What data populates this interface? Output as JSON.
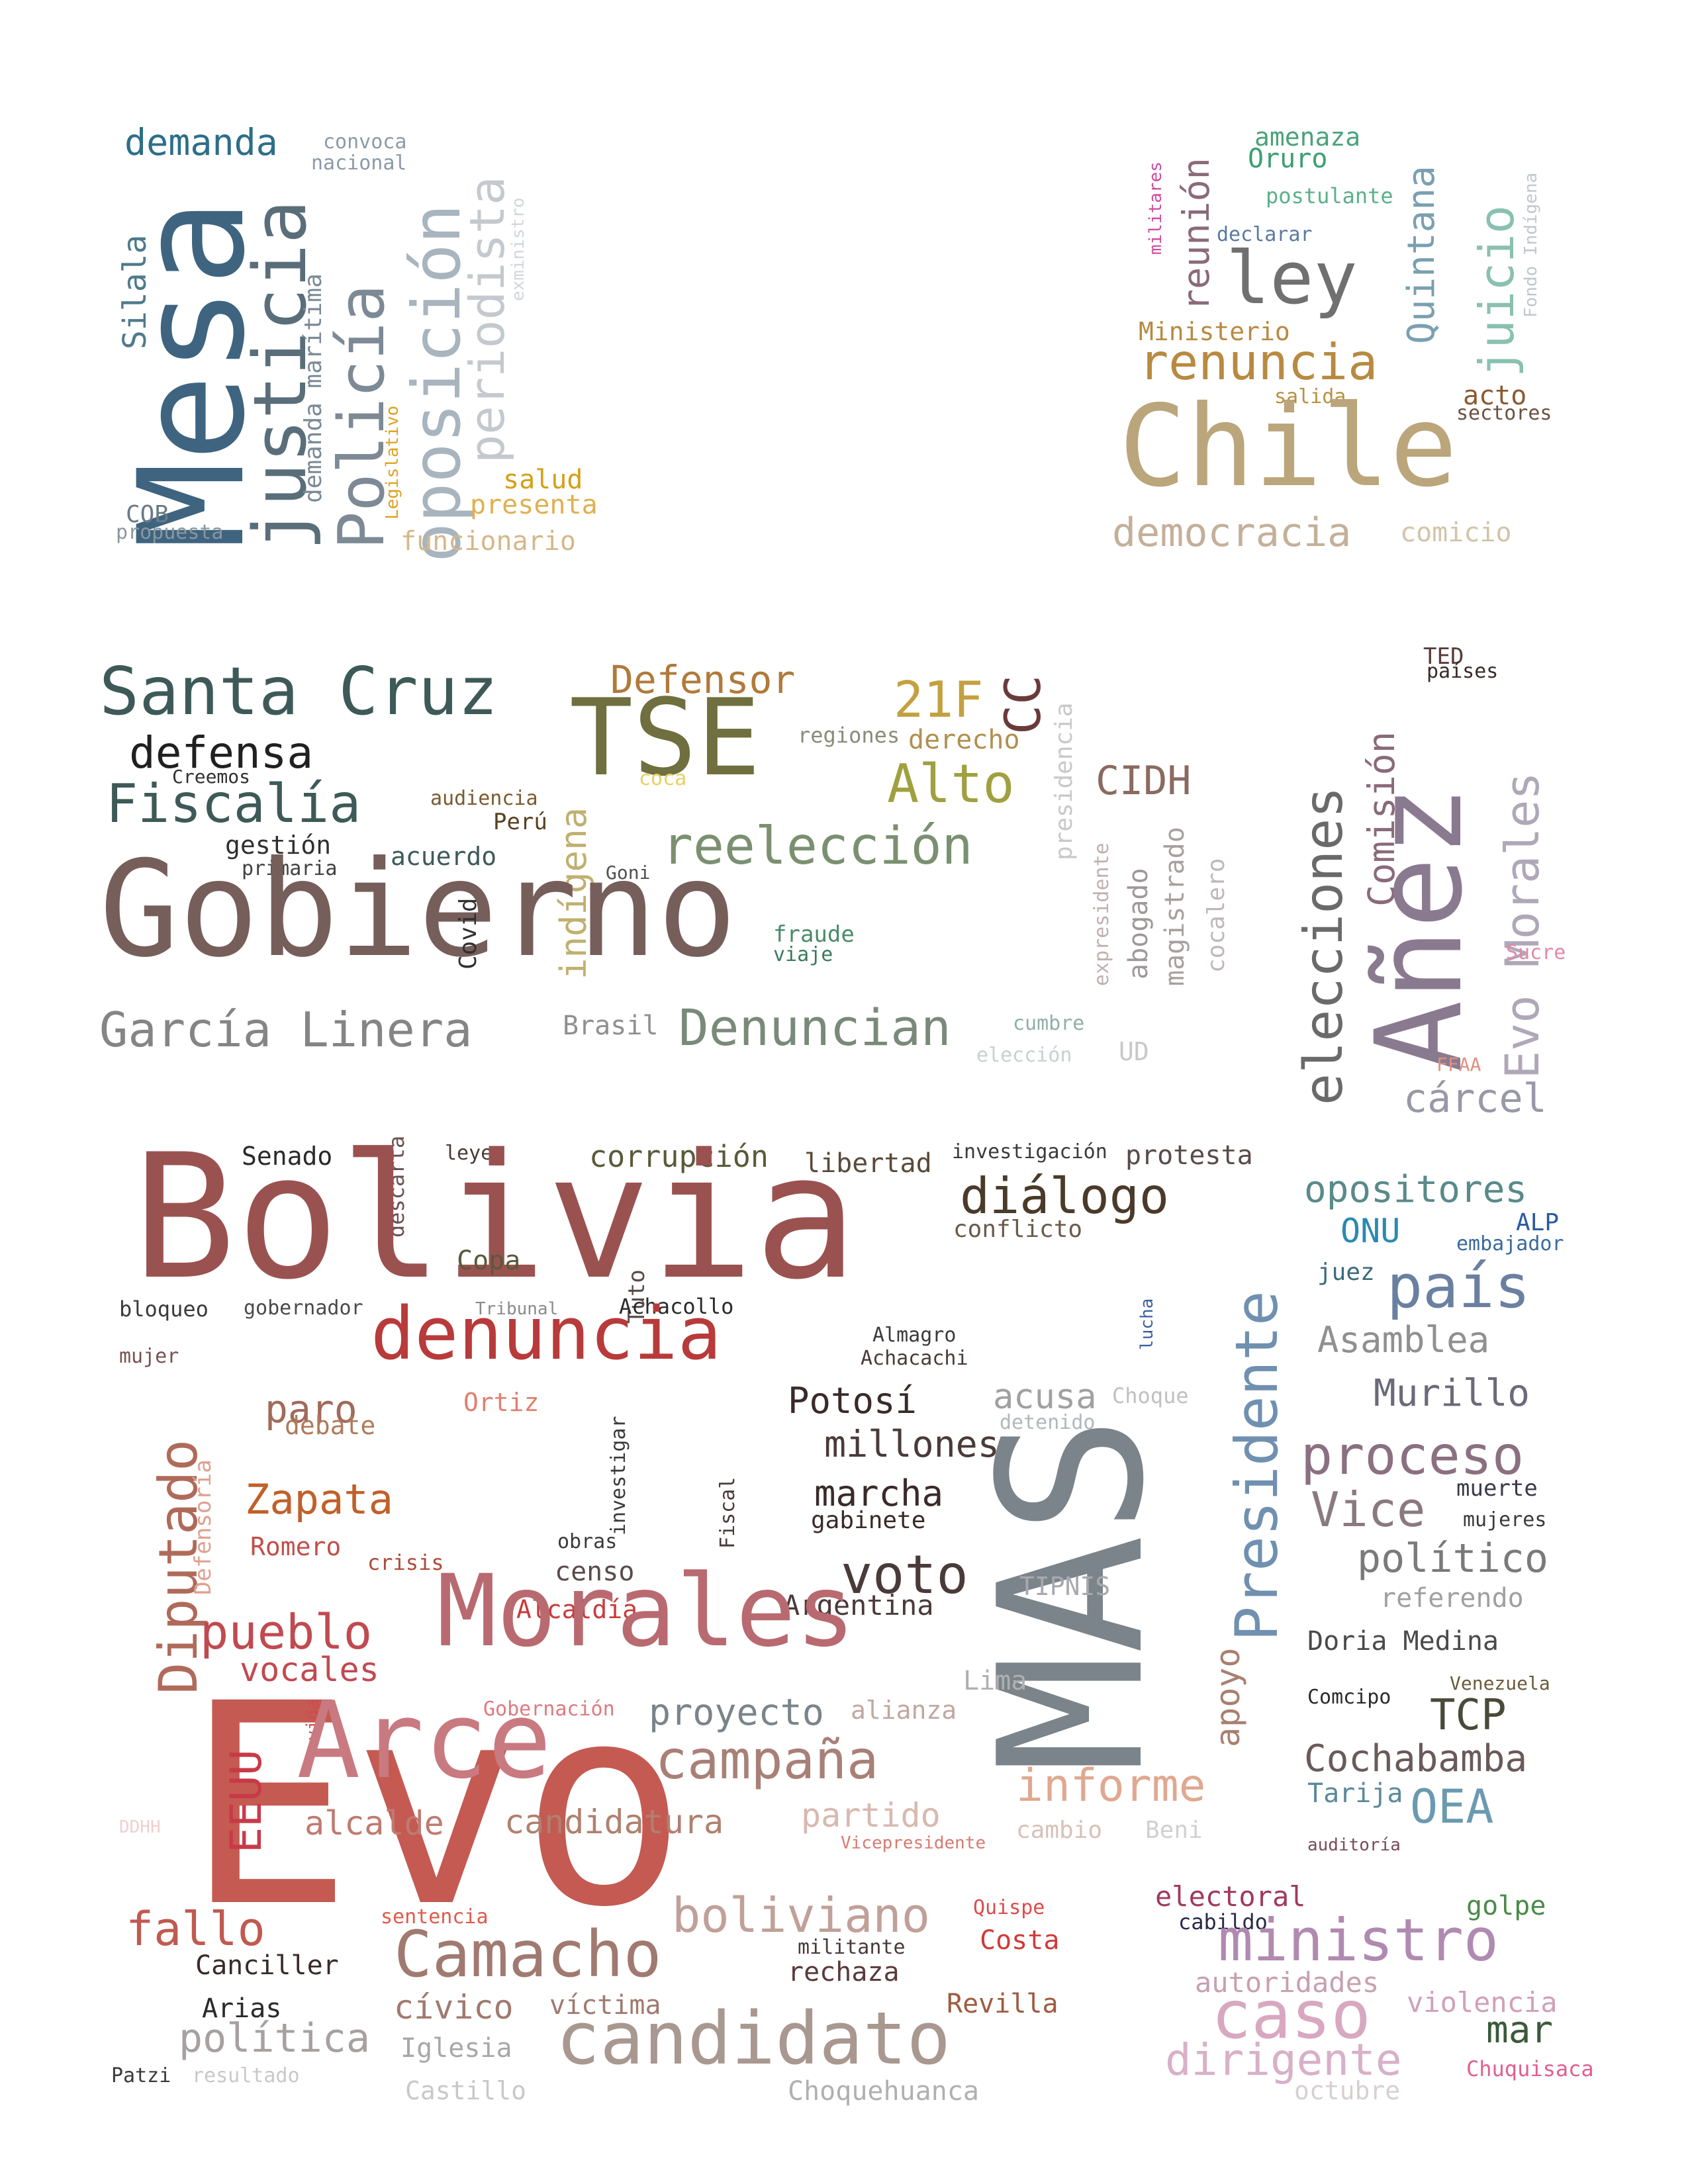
{
  "clusters": [
    {
      "id": "top-left",
      "words": [
        {
          "text": "demanda",
          "color": "#2c6e8a"
        },
        {
          "text": "convoca",
          "color": "#8c9aa8"
        },
        {
          "text": "nacional",
          "color": "#8c9aa8"
        },
        {
          "text": "Mesa",
          "color": "#3e6480"
        },
        {
          "text": "justicia",
          "color": "#5a6e7a"
        },
        {
          "text": "Silala",
          "color": "#4e7a8c"
        },
        {
          "text": "demanda marítima",
          "color": "#7a8a96"
        },
        {
          "text": "Policía",
          "color": "#7d8a95"
        },
        {
          "text": "oposición",
          "color": "#a8b4be"
        },
        {
          "text": "periodista",
          "color": "#c4c9cf"
        },
        {
          "text": "exministro",
          "color": "#d2d6da"
        },
        {
          "text": "Legislativo",
          "color": "#e0a020"
        },
        {
          "text": "salud",
          "color": "#d4a017"
        },
        {
          "text": "presenta",
          "color": "#e0b050"
        },
        {
          "text": "funcionario",
          "color": "#d4b88a"
        },
        {
          "text": "COB",
          "color": "#6a7a86"
        },
        {
          "text": "propuesta",
          "color": "#8a969e"
        }
      ]
    },
    {
      "id": "top-right",
      "words": [
        {
          "text": "amenaza",
          "color": "#4aa37a"
        },
        {
          "text": "Oruro",
          "color": "#3aa070"
        },
        {
          "text": "militares",
          "color": "#d04aa0"
        },
        {
          "text": "reunión",
          "color": "#8a6a7a"
        },
        {
          "text": "postulante",
          "color": "#5ab08a"
        },
        {
          "text": "declarar",
          "color": "#5a7aa0"
        },
        {
          "text": "ley",
          "color": "#707070"
        },
        {
          "text": "Quintana",
          "color": "#7aa0b0"
        },
        {
          "text": "juicio",
          "color": "#8ac0b0"
        },
        {
          "text": "Fondo Indígena",
          "color": "#c0c8cc"
        },
        {
          "text": "Ministerio",
          "color": "#b88a40"
        },
        {
          "text": "renuncia",
          "color": "#b88a40"
        },
        {
          "text": "salida",
          "color": "#b89040"
        },
        {
          "text": "acto",
          "color": "#8a5a30"
        },
        {
          "text": "sectores",
          "color": "#6a5040"
        },
        {
          "text": "Chile",
          "color": "#bba57a"
        },
        {
          "text": "democracia",
          "color": "#c4b09a"
        },
        {
          "text": "comicio",
          "color": "#d2c4a8"
        }
      ]
    },
    {
      "id": "middle-left",
      "words": [
        {
          "text": "Santa Cruz",
          "color": "#3e5a58"
        },
        {
          "text": "Defensor",
          "color": "#b07a3a"
        },
        {
          "text": "21F",
          "color": "#c4a040"
        },
        {
          "text": "CC",
          "color": "#6a3a3a"
        },
        {
          "text": "presidencia",
          "color": "#c8c8c8"
        },
        {
          "text": "TSE",
          "color": "#6f6f3f"
        },
        {
          "text": "regiones",
          "color": "#8a8a7a"
        },
        {
          "text": "derecho",
          "color": "#b09050"
        },
        {
          "text": "defensa",
          "color": "#202020"
        },
        {
          "text": "Creemos",
          "color": "#303030"
        },
        {
          "text": "coca",
          "color": "#e8d060"
        },
        {
          "text": "Alto",
          "color": "#a0a040"
        },
        {
          "text": "CIDH",
          "color": "#8a6a60"
        },
        {
          "text": "Fiscalía",
          "color": "#3e5a58"
        },
        {
          "text": "audiencia",
          "color": "#7a5a30"
        },
        {
          "text": "Perú",
          "color": "#5a4020"
        },
        {
          "text": "indígena",
          "color": "#c0b070"
        },
        {
          "text": "reelección",
          "color": "#7a9070"
        },
        {
          "text": "gestión",
          "color": "#303030"
        },
        {
          "text": "primaria",
          "color": "#404040"
        },
        {
          "text": "acuerdo",
          "color": "#3e5a58"
        },
        {
          "text": "Goni",
          "color": "#505050"
        },
        {
          "text": "expresidente",
          "color": "#c0b0b0"
        },
        {
          "text": "abogado",
          "color": "#a09898"
        },
        {
          "text": "magistrado",
          "color": "#a8a0a0"
        },
        {
          "text": "cocalero",
          "color": "#c0b8b8"
        },
        {
          "text": "Gobierno",
          "color": "#765e5a"
        },
        {
          "text": "Covid",
          "color": "#303030"
        },
        {
          "text": "fraude",
          "color": "#4a8a6a"
        },
        {
          "text": "viaje",
          "color": "#3a7a5a"
        },
        {
          "text": "García Linera",
          "color": "#858585"
        },
        {
          "text": "Brasil",
          "color": "#909090"
        },
        {
          "text": "Denuncian",
          "color": "#7a8a7a"
        },
        {
          "text": "cumbre",
          "color": "#90b0a8"
        },
        {
          "text": "elección",
          "color": "#c8d0d0"
        },
        {
          "text": "UD",
          "color": "#c8c8c8"
        }
      ]
    },
    {
      "id": "middle-right",
      "words": [
        {
          "text": "TED",
          "color": "#5a3a3a"
        },
        {
          "text": "países",
          "color": "#3a2a2a"
        },
        {
          "text": "elecciones",
          "color": "#6a6a6a"
        },
        {
          "text": "Comisión",
          "color": "#8a6a7a"
        },
        {
          "text": "Añez",
          "color": "#8a7a90"
        },
        {
          "text": "Evo Morales",
          "color": "#b0a8b8"
        },
        {
          "text": "Sucre",
          "color": "#e088a8"
        },
        {
          "text": "FFAA",
          "color": "#e09080"
        },
        {
          "text": "cárcel",
          "color": "#9898a8"
        }
      ]
    },
    {
      "id": "center",
      "words": [
        {
          "text": "Senado",
          "color": "#2a2a2a"
        },
        {
          "text": "descarta",
          "color": "#6a5050"
        },
        {
          "text": "leyes",
          "color": "#4a3a3a"
        },
        {
          "text": "corrupción",
          "color": "#5a5a3a"
        },
        {
          "text": "libertad",
          "color": "#5a4a3a"
        },
        {
          "text": "investigación",
          "color": "#3a3a3a"
        },
        {
          "text": "protesta",
          "color": "#5a4a4a"
        },
        {
          "text": "Bolivia",
          "color": "#9a5250"
        },
        {
          "text": "diálogo",
          "color": "#4a3a2a"
        },
        {
          "text": "conflicto",
          "color": "#6a5a4a"
        },
        {
          "text": "Copa",
          "color": "#5a5a3a"
        },
        {
          "text": "Tuto",
          "color": "#5a4a4a"
        },
        {
          "text": "bloqueo",
          "color": "#3a3a3a"
        },
        {
          "text": "gobernador",
          "color": "#4a4a4a"
        },
        {
          "text": "Tribunal",
          "color": "#8a8a8a"
        },
        {
          "text": "Achacollo",
          "color": "#2a2a2a"
        },
        {
          "text": "MAS",
          "color": "#7a848a"
        },
        {
          "text": "Presidente",
          "color": "#7090b0"
        },
        {
          "text": "lucha",
          "color": "#3a60a0"
        },
        {
          "text": "mujer",
          "color": "#7a5050"
        },
        {
          "text": "Evo",
          "color": "#c45a52"
        },
        {
          "text": "denuncia",
          "color": "#b83a3a"
        },
        {
          "text": "Almagro",
          "color": "#3a3a3a"
        },
        {
          "text": "Achacachi",
          "color": "#4a3a3a"
        },
        {
          "text": "Diputado",
          "color": "#b06a5a"
        },
        {
          "text": "Defensoría",
          "color": "#e0a090"
        },
        {
          "text": "paro",
          "color": "#a06a5a"
        },
        {
          "text": "debate",
          "color": "#b07a5a"
        },
        {
          "text": "Ortiz",
          "color": "#e08070"
        },
        {
          "text": "Potosí",
          "color": "#3a2a2a"
        },
        {
          "text": "acusa",
          "color": "#a0a0a0"
        },
        {
          "text": "Choque",
          "color": "#c0c0c0"
        },
        {
          "text": "detenido",
          "color": "#b0b8b8"
        },
        {
          "text": "millones",
          "color": "#4a3a3a"
        },
        {
          "text": "investigar",
          "color": "#3a3a3a"
        },
        {
          "text": "Zapata",
          "color": "#c0602a"
        },
        {
          "text": "Fiscal",
          "color": "#4a3a3a"
        },
        {
          "text": "marcha",
          "color": "#3a2a2a"
        },
        {
          "text": "gabinete",
          "color": "#3a2a2a"
        },
        {
          "text": "Romero",
          "color": "#c0504a"
        },
        {
          "text": "crisis",
          "color": "#b04a3a"
        },
        {
          "text": "obras",
          "color": "#3a3a3a"
        },
        {
          "text": "censo",
          "color": "#5a4a4a"
        },
        {
          "text": "voto",
          "color": "#4a3a3a"
        },
        {
          "text": "TIPNIS",
          "color": "#a8a8b0"
        },
        {
          "text": "Alcaldía",
          "color": "#c83a3a"
        },
        {
          "text": "Argentina",
          "color": "#4a3a3a"
        },
        {
          "text": "pueblo",
          "color": "#c04a50"
        },
        {
          "text": "Morales",
          "color": "#b86a70"
        },
        {
          "text": "vocales",
          "color": "#c04a50"
        },
        {
          "text": "EEUU",
          "color": "#c83a48"
        },
        {
          "text": "apoyo",
          "color": "#a88070"
        },
        {
          "text": "Lima",
          "color": "#b0b0b0"
        },
        {
          "text": "Gobernación",
          "color": "#e07a80"
        },
        {
          "text": "vida",
          "color": "#d04a50"
        },
        {
          "text": "proyecto",
          "color": "#7a848a"
        },
        {
          "text": "alianza",
          "color": "#c0a8a0"
        },
        {
          "text": "Arce",
          "color": "#c87a80"
        },
        {
          "text": "campaña",
          "color": "#a88078"
        },
        {
          "text": "informe",
          "color": "#e0a890"
        },
        {
          "text": "alcalde",
          "color": "#c07a70"
        },
        {
          "text": "candidatura",
          "color": "#b08070"
        },
        {
          "text": "partido",
          "color": "#d8b8b0"
        },
        {
          "text": "cambio",
          "color": "#d8c0b8"
        },
        {
          "text": "Beni",
          "color": "#d0d0d0"
        },
        {
          "text": "Vicepresidente",
          "color": "#d87a70"
        },
        {
          "text": "DDHH",
          "color": "#f0d0d0"
        }
      ]
    },
    {
      "id": "center-right",
      "words": [
        {
          "text": "opositores",
          "color": "#5a8a8a"
        },
        {
          "text": "ONU",
          "color": "#2a8ab0"
        },
        {
          "text": "ALP",
          "color": "#2a5aa0"
        },
        {
          "text": "embajador",
          "color": "#3a6a9a"
        },
        {
          "text": "juez",
          "color": "#3a6a7a"
        },
        {
          "text": "país",
          "color": "#6a80a0"
        },
        {
          "text": "Asamblea",
          "color": "#909090"
        },
        {
          "text": "Murillo",
          "color": "#6a6a7a"
        },
        {
          "text": "proceso",
          "color": "#8a7080"
        },
        {
          "text": "Vice",
          "color": "#8a7a80"
        },
        {
          "text": "muerte",
          "color": "#3a3a4a"
        },
        {
          "text": "mujeres",
          "color": "#3a3a3a"
        },
        {
          "text": "político",
          "color": "#7a7a7a"
        },
        {
          "text": "referendo",
          "color": "#a0a0a0"
        },
        {
          "text": "Doria Medina",
          "color": "#4a4a4a"
        },
        {
          "text": "Venezuela",
          "color": "#6a5a3a"
        },
        {
          "text": "Comcipo",
          "color": "#2a2a2a"
        },
        {
          "text": "TCP",
          "color": "#4a4a3a"
        },
        {
          "text": "Cochabamba",
          "color": "#6a5a5a"
        },
        {
          "text": "Tarija",
          "color": "#5a8a9a"
        },
        {
          "text": "OEA",
          "color": "#6a9ab0"
        },
        {
          "text": "auditoría",
          "color": "#7a4a5a"
        }
      ]
    },
    {
      "id": "bottom-left",
      "words": [
        {
          "text": "sentencia",
          "color": "#e05a4a"
        },
        {
          "text": "Quispe",
          "color": "#e04a4a"
        },
        {
          "text": "fallo",
          "color": "#c05a50"
        },
        {
          "text": "boliviano",
          "color": "#c0a098"
        },
        {
          "text": "militante",
          "color": "#4a3a3a"
        },
        {
          "text": "Costa",
          "color": "#d03a3a"
        },
        {
          "text": "Canciller",
          "color": "#3a2a2a"
        },
        {
          "text": "Camacho",
          "color": "#a07a70"
        },
        {
          "text": "rechaza",
          "color": "#5a3a3a"
        },
        {
          "text": "Arias",
          "color": "#2a2a2a"
        },
        {
          "text": "cívico",
          "color": "#a07a70"
        },
        {
          "text": "víctima",
          "color": "#a07a70"
        },
        {
          "text": "Revilla",
          "color": "#a05a40"
        },
        {
          "text": "política",
          "color": "#a8a0a0"
        },
        {
          "text": "Iglesia",
          "color": "#a8a8a8"
        },
        {
          "text": "candidato",
          "color": "#a89890"
        },
        {
          "text": "Patzi",
          "color": "#3a3a3a"
        },
        {
          "text": "resultado",
          "color": "#c8c8c8"
        },
        {
          "text": "Castillo",
          "color": "#c8c8c8"
        },
        {
          "text": "Choquehuanca",
          "color": "#b0b0b0"
        }
      ]
    },
    {
      "id": "bottom-right",
      "words": [
        {
          "text": "electoral",
          "color": "#a03a5a"
        },
        {
          "text": "golpe",
          "color": "#4a8a4a"
        },
        {
          "text": "cabildo",
          "color": "#2a2a4a"
        },
        {
          "text": "ministro",
          "color": "#b08ab0"
        },
        {
          "text": "autoridades",
          "color": "#c8a0b0"
        },
        {
          "text": "caso",
          "color": "#d8a8c0"
        },
        {
          "text": "violencia",
          "color": "#d0a0b8"
        },
        {
          "text": "mar",
          "color": "#3a5a3a"
        },
        {
          "text": "dirigente",
          "color": "#d8b0c8"
        },
        {
          "text": "Chuquisaca",
          "color": "#e06090"
        },
        {
          "text": "octubre",
          "color": "#d8d0d0"
        }
      ]
    }
  ]
}
